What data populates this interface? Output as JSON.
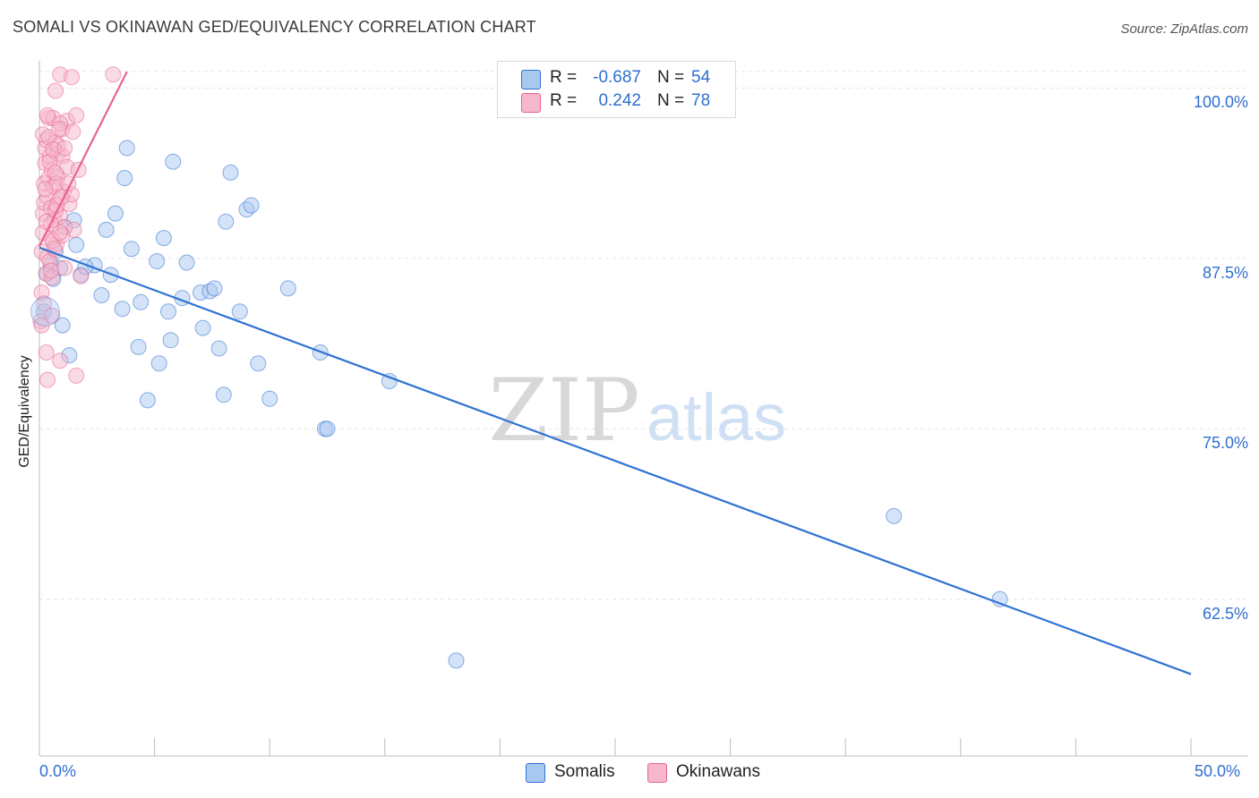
{
  "header": {
    "title": "SOMALI VS OKINAWAN GED/EQUIVALENCY CORRELATION CHART",
    "source": "Source: ZipAtlas.com"
  },
  "watermark": {
    "zip": "ZIP",
    "atlas": "atlas"
  },
  "stats": [
    {
      "r_label": "R =",
      "r_value": "-0.687",
      "n_label": "N =",
      "n_value": "54",
      "color": "#a9c8f0"
    },
    {
      "r_label": "R =",
      "r_value": "0.242",
      "n_label": "N =",
      "n_value": "78",
      "color": "#f6b6cb"
    }
  ],
  "legend": [
    {
      "label": "Somalis",
      "color": "#a9c8f0"
    },
    {
      "label": "Okinawans",
      "color": "#f6b6cb"
    }
  ],
  "chart_data": {
    "type": "scatter",
    "title": "SOMALI VS OKINAWAN GED/EQUIVALENCY CORRELATION CHART",
    "xlabel": "",
    "ylabel": "GED/Equivalency",
    "xlim": [
      0,
      50
    ],
    "ylim": [
      51.0,
      102.0
    ],
    "x_tick_labels": {
      "left": "0.0%",
      "right": "50.0%"
    },
    "y_ticks": [
      {
        "value": 100.0,
        "label": "100.0%"
      },
      {
        "value": 87.5,
        "label": "87.5%"
      },
      {
        "value": 75.0,
        "label": "75.0%"
      },
      {
        "value": 62.5,
        "label": "62.5%"
      }
    ],
    "grid": true,
    "series": [
      {
        "name": "Somalis",
        "color": "#2f72d3",
        "fill": "#a9c8f0",
        "trend": {
          "x": [
            0,
            50
          ],
          "y": [
            88.3,
            57.0
          ]
        },
        "points": [
          [
            0.2,
            83.6
          ],
          [
            0.5,
            87.0
          ],
          [
            0.6,
            86.0
          ],
          [
            0.7,
            88.0
          ],
          [
            0.9,
            86.8
          ],
          [
            1.0,
            82.6
          ],
          [
            1.1,
            89.8
          ],
          [
            1.3,
            80.4
          ],
          [
            1.5,
            90.3
          ],
          [
            1.6,
            88.5
          ],
          [
            1.8,
            86.3
          ],
          [
            2.4,
            87.0
          ],
          [
            2.7,
            84.8
          ],
          [
            2.9,
            89.6
          ],
          [
            3.1,
            86.3
          ],
          [
            3.3,
            90.8
          ],
          [
            3.6,
            83.8
          ],
          [
            3.7,
            93.4
          ],
          [
            3.8,
            95.6
          ],
          [
            4.0,
            88.2
          ],
          [
            4.3,
            81.0
          ],
          [
            4.4,
            84.3
          ],
          [
            4.7,
            77.1
          ],
          [
            5.1,
            87.3
          ],
          [
            5.2,
            79.8
          ],
          [
            5.4,
            89.0
          ],
          [
            5.6,
            83.6
          ],
          [
            5.7,
            81.5
          ],
          [
            5.8,
            94.6
          ],
          [
            6.2,
            84.6
          ],
          [
            6.4,
            87.2
          ],
          [
            7.0,
            85.0
          ],
          [
            7.1,
            82.4
          ],
          [
            7.4,
            85.1
          ],
          [
            7.6,
            85.3
          ],
          [
            7.8,
            80.9
          ],
          [
            8.0,
            77.5
          ],
          [
            8.1,
            90.2
          ],
          [
            8.3,
            93.8
          ],
          [
            8.7,
            83.6
          ],
          [
            9.0,
            91.1
          ],
          [
            9.2,
            91.4
          ],
          [
            9.5,
            79.8
          ],
          [
            10.0,
            77.2
          ],
          [
            10.8,
            85.3
          ],
          [
            12.2,
            80.6
          ],
          [
            12.4,
            75.0
          ],
          [
            12.5,
            75.0
          ],
          [
            15.2,
            78.5
          ],
          [
            18.1,
            58.0
          ],
          [
            37.1,
            68.6
          ],
          [
            41.7,
            62.5
          ],
          [
            0.3,
            86.4
          ],
          [
            2.0,
            86.9
          ]
        ]
      },
      {
        "name": "Okinawans",
        "color": "#e8648e",
        "fill": "#f6b6cb",
        "trend": {
          "x": [
            0,
            3.8
          ],
          "y": [
            88.4,
            101.2
          ]
        },
        "points": [
          [
            0.05,
            82.9
          ],
          [
            0.1,
            82.6
          ],
          [
            0.1,
            88.0
          ],
          [
            0.15,
            89.4
          ],
          [
            0.15,
            90.8
          ],
          [
            0.2,
            91.6
          ],
          [
            0.2,
            93.0
          ],
          [
            0.25,
            94.5
          ],
          [
            0.25,
            95.6
          ],
          [
            0.3,
            96.2
          ],
          [
            0.3,
            86.4
          ],
          [
            0.35,
            87.6
          ],
          [
            0.35,
            92.0
          ],
          [
            0.4,
            93.4
          ],
          [
            0.4,
            97.8
          ],
          [
            0.45,
            95.0
          ],
          [
            0.5,
            91.2
          ],
          [
            0.5,
            89.0
          ],
          [
            0.55,
            94.0
          ],
          [
            0.6,
            97.8
          ],
          [
            0.6,
            92.8
          ],
          [
            0.65,
            90.3
          ],
          [
            0.7,
            96.0
          ],
          [
            0.75,
            88.6
          ],
          [
            0.8,
            95.2
          ],
          [
            0.8,
            93.5
          ],
          [
            0.85,
            91.8
          ],
          [
            0.9,
            90.6
          ],
          [
            1.0,
            95.0
          ],
          [
            1.0,
            97.0
          ],
          [
            1.05,
            92.4
          ],
          [
            1.1,
            89.8
          ],
          [
            1.2,
            97.6
          ],
          [
            1.2,
            94.2
          ],
          [
            1.3,
            91.5
          ],
          [
            1.4,
            92.2
          ],
          [
            1.5,
            89.6
          ],
          [
            1.6,
            98.0
          ],
          [
            1.7,
            94.0
          ],
          [
            1.8,
            86.2
          ],
          [
            0.9,
            80.0
          ],
          [
            0.3,
            80.6
          ],
          [
            0.35,
            78.6
          ],
          [
            1.6,
            78.9
          ],
          [
            0.9,
            101.0
          ],
          [
            1.4,
            100.8
          ],
          [
            3.2,
            101.0
          ],
          [
            0.7,
            99.8
          ],
          [
            0.1,
            85.0
          ],
          [
            0.2,
            84.2
          ],
          [
            0.45,
            87.3
          ],
          [
            0.5,
            90.0
          ],
          [
            0.55,
            86.1
          ],
          [
            0.6,
            88.8
          ],
          [
            0.7,
            91.0
          ],
          [
            0.75,
            93.0
          ],
          [
            0.8,
            95.8
          ],
          [
            0.9,
            97.4
          ],
          [
            1.0,
            89.2
          ],
          [
            1.1,
            86.8
          ],
          [
            0.15,
            96.6
          ],
          [
            0.25,
            92.6
          ],
          [
            0.3,
            90.2
          ],
          [
            0.35,
            98.0
          ],
          [
            0.4,
            96.4
          ],
          [
            0.45,
            94.6
          ],
          [
            0.5,
            86.6
          ],
          [
            0.55,
            83.3
          ],
          [
            0.6,
            95.5
          ],
          [
            0.65,
            88.2
          ],
          [
            0.7,
            93.8
          ],
          [
            0.75,
            91.4
          ],
          [
            0.85,
            97.0
          ],
          [
            0.9,
            89.4
          ],
          [
            0.95,
            92.0
          ],
          [
            1.1,
            95.6
          ],
          [
            1.25,
            93.0
          ],
          [
            1.45,
            96.8
          ]
        ]
      }
    ]
  }
}
